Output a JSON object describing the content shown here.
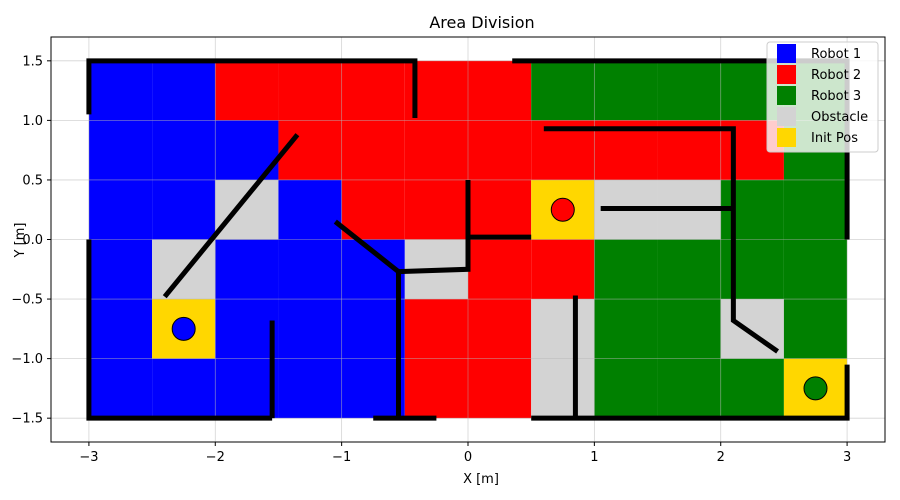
{
  "chart_data": {
    "type": "heatmap",
    "title": "Area Division",
    "xlabel": "X [m]",
    "ylabel": "Y [m]",
    "xlim": [
      -3.3,
      3.3
    ],
    "ylim": [
      -1.7,
      1.7
    ],
    "xticks": [
      -3,
      -2,
      -1,
      0,
      1,
      2,
      3
    ],
    "yticks": [
      -1.5,
      -1.0,
      -0.5,
      0.0,
      0.5,
      1.0,
      1.5
    ],
    "xtick_labels": [
      "−3",
      "−2",
      "−1",
      "0",
      "1",
      "2",
      "3"
    ],
    "ytick_labels": [
      "−1.5",
      "−1.0",
      "−0.5",
      "0.0",
      "0.5",
      "1.0",
      "1.5"
    ],
    "grid": true,
    "legend_position": "top-right",
    "colors": {
      "B": "#0000ff",
      "R": "#ff0000",
      "G": "#008000",
      "O": "#d3d3d3",
      "Y": "#ffd700"
    },
    "legend": [
      {
        "key": "B",
        "label": "Robot 1"
      },
      {
        "key": "R",
        "label": "Robot 2"
      },
      {
        "key": "G",
        "label": "Robot 3"
      },
      {
        "key": "O",
        "label": "Obstacle"
      },
      {
        "key": "Y",
        "label": "Init Pos"
      }
    ],
    "cell_size": 0.5,
    "grid_origin": {
      "x": -3.0,
      "y": 1.5
    },
    "cells": [
      [
        "B",
        "B",
        "R",
        "R",
        "R",
        "R",
        "R",
        "G",
        "G",
        "G",
        "G",
        "G"
      ],
      [
        "B",
        "B",
        "B",
        "R",
        "R",
        "R",
        "R",
        "R",
        "R",
        "R",
        "R",
        "G"
      ],
      [
        "B",
        "B",
        "O",
        "B",
        "R",
        "R",
        "R",
        "Y",
        "O",
        "O",
        "G",
        "G"
      ],
      [
        "B",
        "O",
        "B",
        "B",
        "B",
        "O",
        "R",
        "R",
        "G",
        "G",
        "G",
        "G"
      ],
      [
        "B",
        "Y",
        "B",
        "B",
        "B",
        "R",
        "R",
        "O",
        "G",
        "G",
        "O",
        "G"
      ],
      [
        "B",
        "B",
        "B",
        "B",
        "B",
        "R",
        "R",
        "O",
        "G",
        "G",
        "G",
        "Y"
      ]
    ],
    "robots": [
      {
        "name": "Robot 1",
        "x": -2.25,
        "y": -0.75,
        "color": "#0000ff"
      },
      {
        "name": "Robot 2",
        "x": 0.75,
        "y": 0.25,
        "color": "#ff0000"
      },
      {
        "name": "Robot 3",
        "x": 2.75,
        "y": -1.25,
        "color": "#008000"
      }
    ],
    "walls": [
      [
        [
          -3.0,
          1.05
        ],
        [
          -3.0,
          1.5
        ],
        [
          -0.42,
          1.5
        ],
        [
          -0.42,
          1.02
        ]
      ],
      [
        [
          0.35,
          1.5
        ],
        [
          3.0,
          1.5
        ],
        [
          3.0,
          0.0
        ]
      ],
      [
        [
          -3.0,
          0.0
        ],
        [
          -3.0,
          -1.5
        ],
        [
          -1.55,
          -1.5
        ]
      ],
      [
        [
          -0.75,
          -1.5
        ],
        [
          -0.25,
          -1.5
        ]
      ],
      [
        [
          0.5,
          -1.5
        ],
        [
          3.0,
          -1.5
        ],
        [
          3.0,
          -1.05
        ]
      ],
      [
        [
          -2.4,
          -0.48
        ],
        [
          -1.35,
          0.88
        ]
      ],
      [
        [
          -1.05,
          0.15
        ],
        [
          -0.55,
          -0.27
        ],
        [
          -0.55,
          -1.5
        ]
      ],
      [
        [
          -0.55,
          -0.27
        ],
        [
          0.0,
          -0.25
        ],
        [
          0.0,
          0.5
        ]
      ],
      [
        [
          0.0,
          0.02
        ],
        [
          0.5,
          0.02
        ]
      ],
      [
        [
          0.6,
          0.93
        ],
        [
          2.1,
          0.93
        ],
        [
          2.1,
          -0.68
        ],
        [
          2.45,
          -0.94
        ]
      ],
      [
        [
          1.05,
          0.26
        ],
        [
          2.1,
          0.26
        ]
      ],
      [
        [
          0.85,
          -0.47
        ],
        [
          0.85,
          -1.5
        ]
      ],
      [
        [
          -1.55,
          -0.68
        ],
        [
          -1.55,
          -1.5
        ]
      ]
    ]
  }
}
